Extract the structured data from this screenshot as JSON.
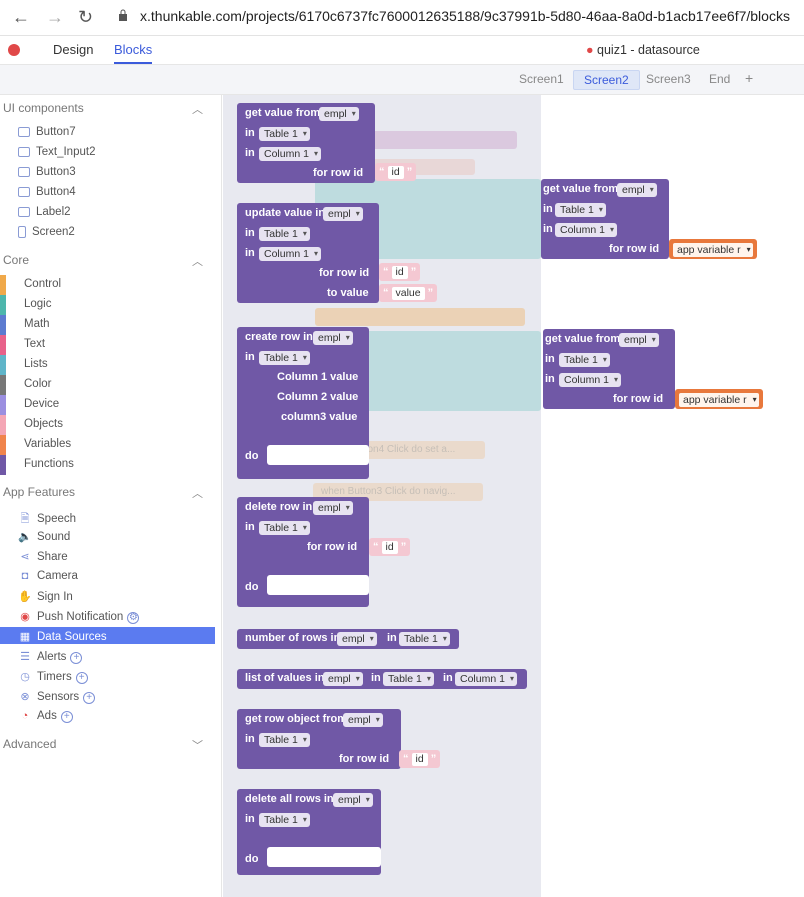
{
  "browser": {
    "url": "x.thunkable.com/projects/6170c6737fc7600012635188/9c37991b-5d80-46aa-8a0d-b1acb17ee6f7/blocks"
  },
  "top": {
    "design": "Design",
    "blocks": "Blocks",
    "project": "quiz1 - datasource"
  },
  "screens": [
    "Screen1",
    "Screen2",
    "Screen3",
    "End",
    "+"
  ],
  "sidebar": {
    "ui_title": "UI components",
    "ui_items": [
      "Button7",
      "Text_Input2",
      "Button3",
      "Button4",
      "Label2",
      "Screen2"
    ],
    "core_title": "Core",
    "core_items": [
      {
        "label": "Control",
        "color": "#f0a94a"
      },
      {
        "label": "Logic",
        "color": "#4db6ac"
      },
      {
        "label": "Math",
        "color": "#5c7bd0"
      },
      {
        "label": "Text",
        "color": "#e8628a"
      },
      {
        "label": "Lists",
        "color": "#5fb5c9"
      },
      {
        "label": "Color",
        "color": "#777777"
      },
      {
        "label": "Device",
        "color": "#9b8fe0"
      },
      {
        "label": "Objects",
        "color": "#f4a6b5"
      },
      {
        "label": "Variables",
        "color": "#f0844c"
      },
      {
        "label": "Functions",
        "color": "#7058a6"
      }
    ],
    "features_title": "App Features",
    "features": [
      "Speech",
      "Sound",
      "Share",
      "Camera",
      "Sign In",
      "Push Notification",
      "Data Sources",
      "Alerts",
      "Timers",
      "Sensors",
      "Ads"
    ],
    "advanced": "Advanced"
  },
  "blocks": {
    "get_value_from": "get value from",
    "update_value_in": "update value in",
    "create_row_in": "create row in",
    "delete_row_in": "delete row in",
    "number_of_rows_in": "number of rows in",
    "list_of_values_in": "list of values in",
    "get_row_object_from": "get row object from",
    "delete_all_rows_in": "delete all rows in",
    "in": "in",
    "for_row_id": "for row id",
    "to_value": "to value",
    "do": "do",
    "column1_value": "Column 1 value",
    "column2_value": "Column 2 value",
    "column3_value": "column3 value",
    "empl": "empl",
    "table1": "Table 1",
    "column1": "Column 1",
    "id": "id",
    "value": "value",
    "app_variable": "app variable r",
    "ghost1": "when Button4 Click do set a...",
    "ghost2": "when Button3 Click do navig..."
  }
}
